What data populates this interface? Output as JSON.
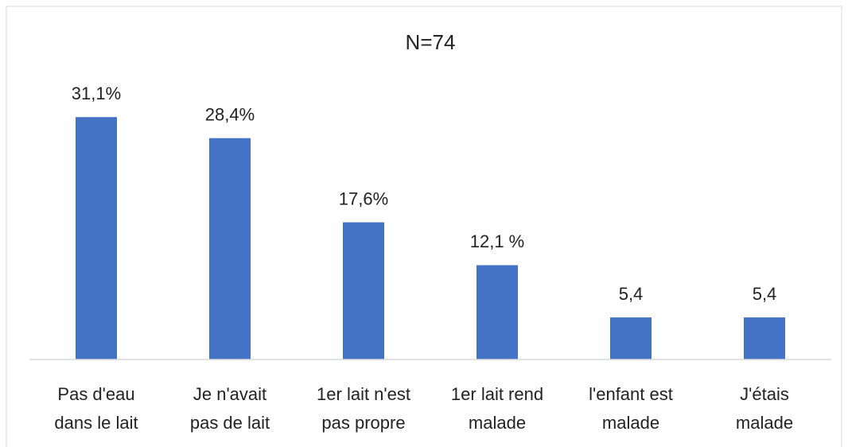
{
  "chart_data": {
    "type": "bar",
    "title": "N=74",
    "categories": [
      [
        "Pas d'eau",
        "dans le lait"
      ],
      [
        "Je n'avait",
        "pas de lait"
      ],
      [
        "1er lait n'est",
        "pas propre"
      ],
      [
        "1er lait rend",
        "malade"
      ],
      [
        "l'enfant est",
        "malade"
      ],
      [
        "J'étais",
        "malade"
      ]
    ],
    "values": [
      31.1,
      28.4,
      17.6,
      12.1,
      5.4,
      5.4
    ],
    "value_labels": [
      "31,1%",
      "28,4%",
      "17,6%",
      "12,1 %",
      "5,4",
      "5,4"
    ],
    "color": "#4472c4",
    "ylim": [
      0,
      35
    ]
  }
}
